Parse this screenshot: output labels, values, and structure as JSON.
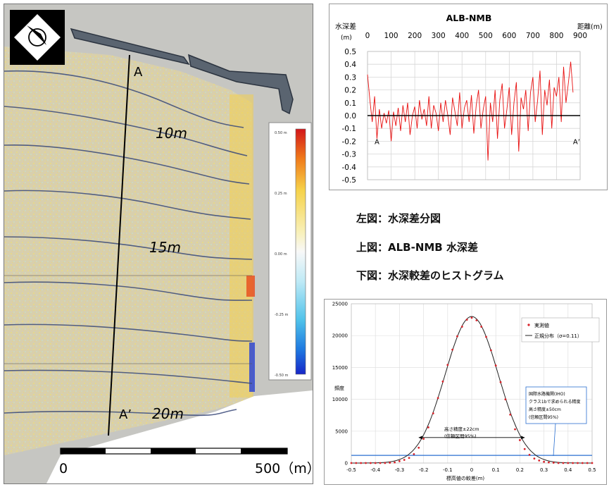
{
  "captions": {
    "left": "左図：水深差分図",
    "top": "上図：ALB-NMB 水深差",
    "bottom": "下図：水深較差のヒストグラム"
  },
  "map": {
    "label_a": "A",
    "label_a_prime": "A’",
    "contour_10": "10m",
    "contour_15": "15m",
    "contour_20": "20m",
    "scale_start": "0",
    "scale_end": "500（m）",
    "colorbar_ticks": [
      "0.50 m",
      "0.25 m",
      "0.00 m",
      "-0.25 m",
      "-0.50 m"
    ],
    "colors": {
      "high": "#e8261c",
      "mid_high": "#f6e060",
      "zero": "#f7f7f7",
      "mid_low": "#8fdcf0",
      "low": "#1b2fd0"
    }
  },
  "chart_data": [
    {
      "type": "line",
      "title": "ALB-NMB",
      "ylabel": "水深差",
      "ylabel_unit": "(m)",
      "xlabel": "距離(m)",
      "xlim": [
        0,
        900
      ],
      "ylim": [
        -0.5,
        0.5
      ],
      "x_ticks": [
        "0",
        "100",
        "200",
        "300",
        "400",
        "500",
        "600",
        "700",
        "800",
        "900"
      ],
      "y_ticks": [
        "0.5",
        "0.4",
        "0.3",
        "0.2",
        "0.1",
        "0.0",
        "-0.1",
        "-0.2",
        "-0.3",
        "-0.4",
        "-0.5"
      ],
      "grid": true,
      "start_label": "A",
      "end_label": "A’",
      "series": [
        {
          "color": "#e81010",
          "x": [
            0,
            10,
            20,
            30,
            40,
            50,
            60,
            70,
            80,
            90,
            100,
            110,
            120,
            130,
            140,
            150,
            160,
            170,
            180,
            190,
            200,
            210,
            220,
            230,
            240,
            250,
            260,
            270,
            280,
            290,
            300,
            310,
            320,
            330,
            340,
            350,
            360,
            370,
            380,
            390,
            400,
            410,
            420,
            430,
            440,
            450,
            460,
            470,
            480,
            490,
            500,
            510,
            520,
            530,
            540,
            550,
            560,
            570,
            580,
            590,
            600,
            610,
            620,
            630,
            640,
            650,
            660,
            670,
            680,
            690,
            700,
            710,
            720,
            730,
            740,
            750,
            760,
            770,
            780,
            790,
            800,
            810,
            820,
            830,
            840,
            850,
            860,
            870
          ],
          "y": [
            0.32,
            0.12,
            -0.05,
            0.15,
            -0.18,
            0.05,
            -0.1,
            0.02,
            -0.06,
            0.04,
            -0.2,
            0.03,
            -0.08,
            0.06,
            -0.12,
            0.08,
            -0.05,
            0.1,
            -0.15,
            0.0,
            0.07,
            -0.1,
            0.12,
            -0.03,
            0.05,
            -0.08,
            0.15,
            -0.1,
            0.08,
            0.02,
            -0.12,
            0.1,
            -0.05,
            0.12,
            0.0,
            -0.15,
            0.14,
            0.03,
            -0.08,
            0.18,
            -0.1,
            0.06,
            0.12,
            -0.05,
            0.16,
            -0.14,
            0.08,
            0.2,
            -0.1,
            0.05,
            0.15,
            -0.35,
            0.1,
            -0.05,
            0.2,
            -0.18,
            0.12,
            0.25,
            -0.1,
            0.05,
            0.22,
            -0.15,
            0.1,
            0.26,
            -0.28,
            0.14,
            0.05,
            0.2,
            -0.12,
            0.18,
            0.3,
            -0.05,
            0.12,
            0.35,
            -0.15,
            0.2,
            0.08,
            0.28,
            -0.1,
            0.22,
            0.15,
            0.3,
            -0.05,
            0.38,
            0.1,
            0.25,
            0.42,
            0.18
          ]
        }
      ]
    },
    {
      "type": "scatter",
      "xlabel": "標高値の較差(m)",
      "ylabel": "頻度",
      "xlim": [
        -0.5,
        0.5
      ],
      "ylim": [
        0,
        25000
      ],
      "x_ticks": [
        "-0.5",
        "-0.4",
        "-0.3",
        "-0.2",
        "-0.1",
        "0",
        "0.1",
        "0.2",
        "0.3",
        "0.4",
        "0.5"
      ],
      "y_ticks": [
        "25000",
        "20000",
        "15000",
        "10000",
        "5000",
        "0"
      ],
      "grid": true,
      "legend": [
        "実測値",
        "正規分布（σ=0.11）"
      ],
      "legend_position": "top-right",
      "annotation_iho": [
        "国際水路機関(IHO)",
        "クラス1bで求められる精度",
        "高さ精度±50cm",
        "(信頼区間95%)"
      ],
      "annotation_measured": [
        "高さ精度±22cm",
        "(信頼区間95%)"
      ],
      "iho_level": 1200,
      "arrow_x": [
        -0.22,
        0.22
      ],
      "series": [
        {
          "name": "実測値",
          "color": "#d8232a",
          "x": [
            -0.5,
            -0.48,
            -0.46,
            -0.44,
            -0.42,
            -0.4,
            -0.38,
            -0.36,
            -0.34,
            -0.32,
            -0.3,
            -0.28,
            -0.26,
            -0.24,
            -0.22,
            -0.2,
            -0.18,
            -0.16,
            -0.14,
            -0.12,
            -0.1,
            -0.08,
            -0.06,
            -0.04,
            -0.02,
            0.0,
            0.02,
            0.04,
            0.06,
            0.08,
            0.1,
            0.12,
            0.14,
            0.16,
            0.18,
            0.2,
            0.22,
            0.24,
            0.26,
            0.28,
            0.3,
            0.32,
            0.34,
            0.36,
            0.38,
            0.4,
            0.42,
            0.44,
            0.46,
            0.48,
            0.5
          ],
          "y": [
            0,
            0,
            0,
            0,
            0,
            0,
            0,
            0,
            50,
            100,
            300,
            500,
            800,
            1400,
            2400,
            3800,
            5600,
            7800,
            10200,
            12800,
            15400,
            17800,
            19900,
            21400,
            22500,
            22800,
            22400,
            21400,
            19800,
            17700,
            15300,
            12700,
            10000,
            7600,
            5300,
            3600,
            2200,
            1300,
            700,
            400,
            200,
            100,
            50,
            0,
            0,
            0,
            0,
            0,
            0,
            0,
            0
          ]
        },
        {
          "name": "正規分布（σ=0.11）",
          "color": "#222222",
          "sigma": 0.11,
          "peak": 23000
        }
      ]
    }
  ]
}
